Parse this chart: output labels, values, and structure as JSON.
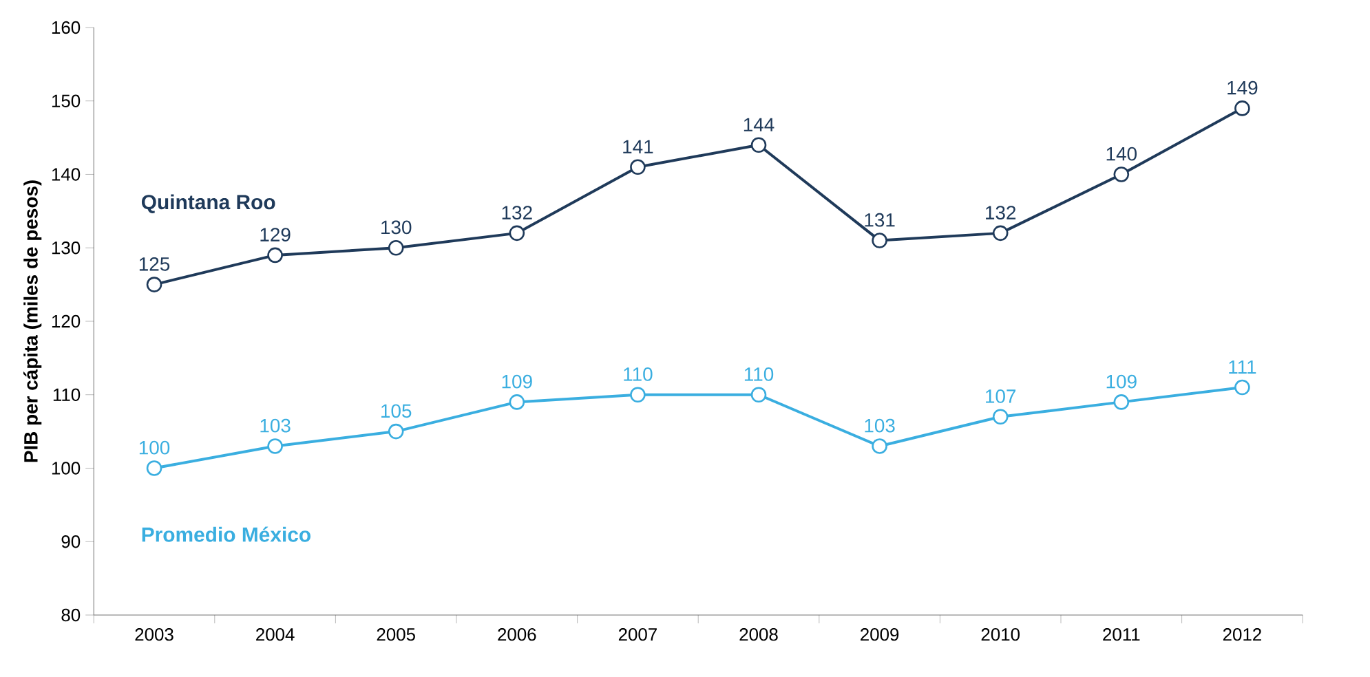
{
  "chart_data": {
    "type": "line",
    "ylabel": "PIB per cápita (miles de pesos)",
    "categories": [
      "2003",
      "2004",
      "2005",
      "2006",
      "2007",
      "2008",
      "2009",
      "2010",
      "2011",
      "2012"
    ],
    "series": [
      {
        "name": "Quintana Roo",
        "color": "#1f3a5a",
        "values": [
          125,
          129,
          130,
          132,
          141,
          144,
          131,
          132,
          140,
          149
        ]
      },
      {
        "name": "Promedio México",
        "color": "#3aaee0",
        "values": [
          100,
          103,
          105,
          109,
          110,
          110,
          103,
          107,
          109,
          111
        ]
      }
    ],
    "ylim": [
      80,
      160
    ],
    "yticks": [
      80,
      90,
      100,
      110,
      120,
      130,
      140,
      150,
      160
    ],
    "data_labels": true,
    "marker": "circle",
    "line_style": "solid",
    "grid": false
  }
}
